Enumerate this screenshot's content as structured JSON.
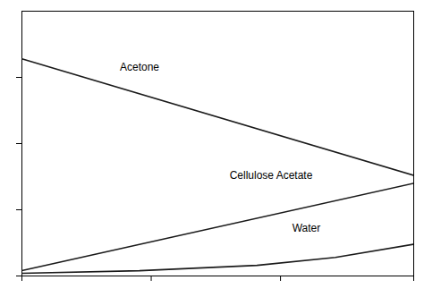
{
  "chart_data": {
    "type": "line",
    "series": [
      {
        "name": "Acetone",
        "color": "#1a1a1a",
        "x": [
          0,
          1
        ],
        "values": [
          0.82,
          0.38
        ]
      },
      {
        "name": "Cellulose Acetate",
        "color": "#1a1a1a",
        "x": [
          0,
          1
        ],
        "values": [
          0.02,
          0.35
        ]
      },
      {
        "name": "Water",
        "color": "#1a1a1a",
        "x": [
          0,
          0.3,
          0.6,
          0.8,
          1.0
        ],
        "values": [
          0.01,
          0.02,
          0.04,
          0.07,
          0.12
        ]
      }
    ],
    "xlim": [
      0,
      1
    ],
    "xticks": [
      0.0,
      0.33,
      0.66,
      1.0
    ],
    "ylim": [
      0,
      1.0
    ],
    "yticks": [
      0.0,
      0.25,
      0.5,
      0.75
    ],
    "tick_labels": false,
    "grid": false
  }
}
